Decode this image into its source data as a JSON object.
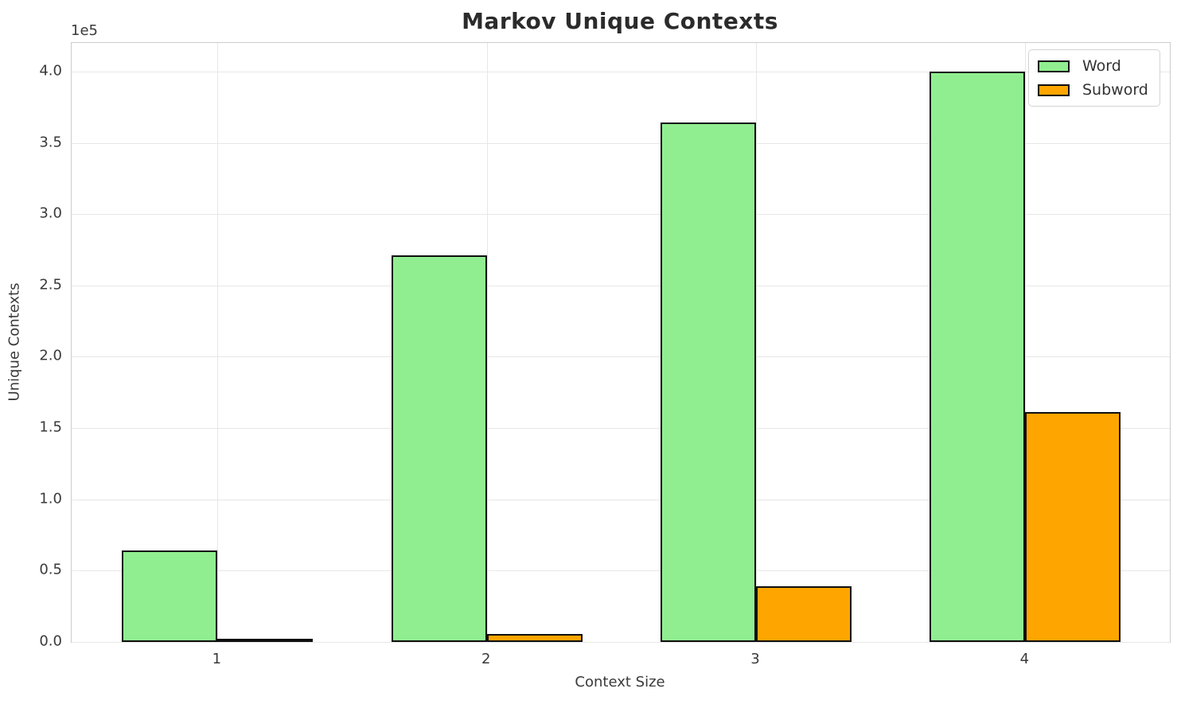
{
  "chart_data": {
    "type": "bar",
    "title": "Markov Unique Contexts",
    "xlabel": "Context Size",
    "ylabel": "Unique Contexts",
    "categories": [
      "1",
      "2",
      "3",
      "4"
    ],
    "series": [
      {
        "name": "Word",
        "color": "#90EE90",
        "values": [
          64000,
          271000,
          364000,
          400000
        ]
      },
      {
        "name": "Subword",
        "color": "#FFA500",
        "values": [
          500,
          5500,
          39000,
          161000
        ]
      }
    ],
    "bar_edge_color": "#0e0e0e",
    "y_axis": {
      "min": 0,
      "max_display": 420000,
      "ticks": [
        0,
        50000,
        100000,
        150000,
        200000,
        250000,
        300000,
        350000,
        400000
      ],
      "tick_labels": [
        "0.0",
        "0.5",
        "1.0",
        "1.5",
        "2.0",
        "2.5",
        "3.0",
        "3.5",
        "4.0"
      ],
      "offset_text": "1e5"
    },
    "x_axis": {
      "tick_labels": [
        "1",
        "2",
        "3",
        "4"
      ]
    },
    "legend": {
      "position": "upper right",
      "entries": [
        "Word",
        "Subword"
      ]
    },
    "grid": true,
    "colors": {
      "grid": "#e7e7e7",
      "spine": "#cccccc",
      "text": "#3a3a3a",
      "title": "#2b2b2b"
    }
  }
}
